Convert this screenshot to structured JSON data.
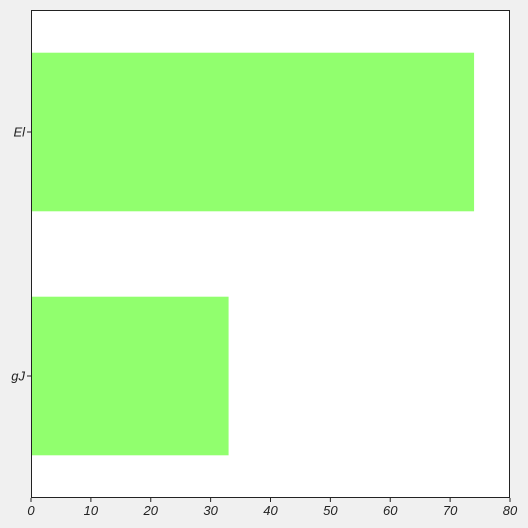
{
  "chart_data": {
    "type": "bar",
    "orientation": "horizontal",
    "categories": [
      "El",
      "gJ"
    ],
    "values": [
      74,
      33
    ],
    "title": "",
    "xlabel": "",
    "ylabel": "",
    "xlim": [
      0,
      80
    ],
    "x_ticks": [
      0,
      10,
      20,
      30,
      40,
      50,
      60,
      70,
      80
    ],
    "grid": false,
    "bar_color": "#91ff6e",
    "background_color": "#f0f0f0",
    "plot_background_color": "#ffffff"
  }
}
